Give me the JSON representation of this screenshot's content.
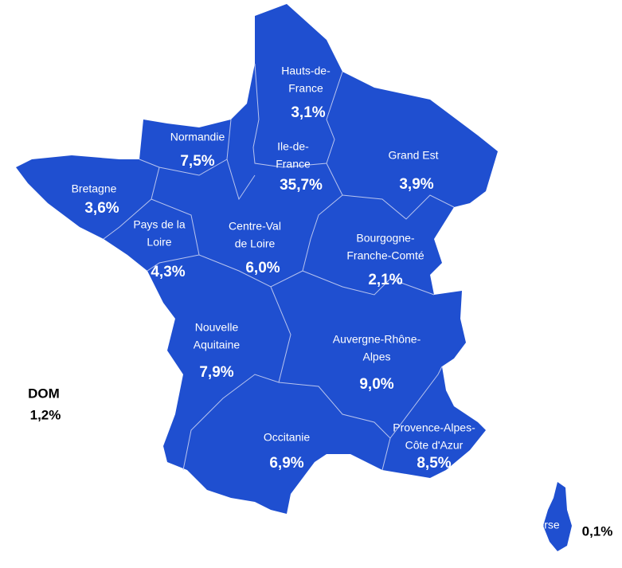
{
  "regions": [
    {
      "name_lines": [
        "Hauts-de-",
        "France"
      ],
      "value": "3,1%"
    },
    {
      "name_lines": [
        "Normandie"
      ],
      "value": "7,5%"
    },
    {
      "name_lines": [
        "Ile-de-",
        "France"
      ],
      "value": "35,7%"
    },
    {
      "name_lines": [
        "Grand Est"
      ],
      "value": "3,9%"
    },
    {
      "name_lines": [
        "Bretagne"
      ],
      "value": "3,6%"
    },
    {
      "name_lines": [
        "Pays de la",
        "Loire"
      ],
      "value": "4,3%"
    },
    {
      "name_lines": [
        "Centre-Val",
        "de Loire"
      ],
      "value": "6,0%"
    },
    {
      "name_lines": [
        "Bourgogne-",
        "Franche-Comté"
      ],
      "value": "2,1%"
    },
    {
      "name_lines": [
        "Nouvelle",
        "Aquitaine"
      ],
      "value": "7,9%"
    },
    {
      "name_lines": [
        "Auvergne-Rhône-",
        "Alpes"
      ],
      "value": "9,0%"
    },
    {
      "name_lines": [
        "Occitanie"
      ],
      "value": "6,9%"
    },
    {
      "name_lines": [
        "Provence-Alpes-",
        "Côte d'Azur"
      ],
      "value": "8,5%"
    },
    {
      "name_lines": [
        "Corse"
      ],
      "value": "0,1%"
    }
  ],
  "dom": {
    "name": "DOM",
    "value": "1,2%"
  }
}
